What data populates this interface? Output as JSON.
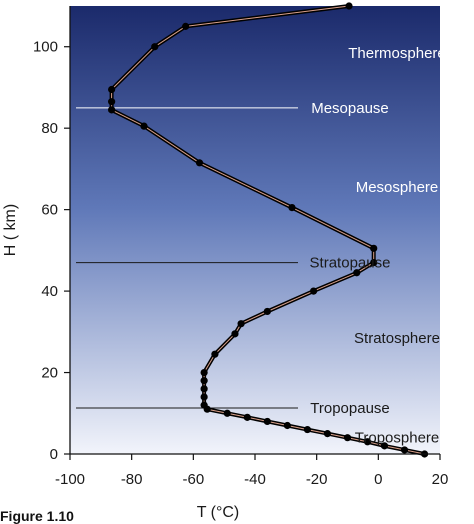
{
  "chart_data": {
    "type": "line",
    "xlabel": "T (°C)",
    "ylabel": "H ( km)",
    "xlim": [
      -100,
      20
    ],
    "ylim": [
      0,
      110
    ],
    "x_ticks": [
      -100,
      -80,
      -60,
      -40,
      -20,
      0,
      20
    ],
    "y_ticks": [
      0,
      20,
      40,
      60,
      80,
      100
    ],
    "series": [
      {
        "x": [
          15,
          8.5,
          2,
          -3.5,
          -10,
          -16.5,
          -23,
          -29.5,
          -36,
          -42.5,
          -49,
          -55.5,
          -56.5,
          -56.5,
          -56.5,
          -56.5,
          -56.5,
          -53,
          -46.5,
          -44.5,
          -36,
          -21,
          -7,
          -1.5,
          -1.5,
          -28,
          -58,
          -76,
          -86.5,
          -86.5,
          -86.5,
          -72.5,
          -62.5,
          -9.5
        ],
        "y": [
          0,
          1,
          2,
          3,
          4,
          5,
          6,
          7,
          8,
          9,
          10,
          11,
          12,
          14,
          16,
          18,
          20,
          24.5,
          29.5,
          32,
          35,
          40,
          44.5,
          47,
          50.5,
          60.5,
          71.5,
          80.5,
          84.5,
          86.5,
          89.5,
          100,
          105,
          110
        ]
      }
    ],
    "boundaries": [
      {
        "label": "Tropopause",
        "h": 11.3
      },
      {
        "label": "Stratopause",
        "h": 47
      },
      {
        "label": "Mesopause",
        "h": 85
      }
    ],
    "layers": [
      {
        "label": "Troposphere",
        "h": 4
      },
      {
        "label": "Stratosphere",
        "h": 28.5
      },
      {
        "label": "Mesosphere",
        "h": 65.5
      },
      {
        "label": "Thermosphere",
        "h": 98.5
      }
    ],
    "colors": {
      "background_top": "#1b2a6b",
      "background_bottom": "#f2f4fb",
      "line": "#000000",
      "line_highlight": "#d9a08a"
    }
  },
  "caption": "Figure 1.10"
}
